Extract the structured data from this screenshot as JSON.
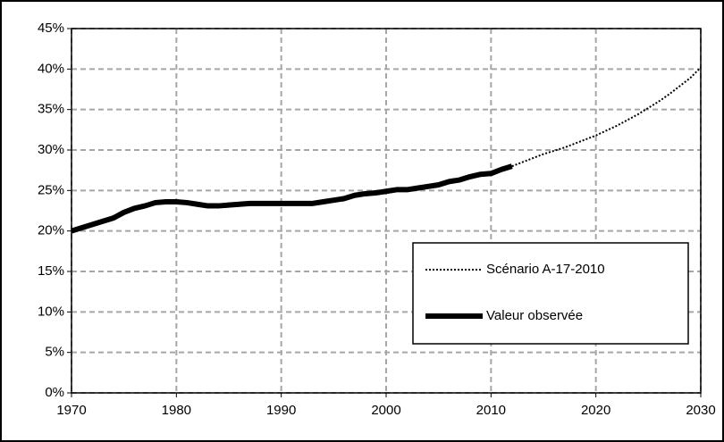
{
  "chart_data": {
    "type": "line",
    "x": [
      1970,
      1971,
      1972,
      1973,
      1974,
      1975,
      1976,
      1977,
      1978,
      1979,
      1980,
      1981,
      1982,
      1983,
      1984,
      1985,
      1986,
      1987,
      1988,
      1989,
      1990,
      1991,
      1992,
      1993,
      1994,
      1995,
      1996,
      1997,
      1998,
      1999,
      2000,
      2001,
      2002,
      2003,
      2004,
      2005,
      2006,
      2007,
      2008,
      2009,
      2010,
      2011,
      2012,
      2013,
      2014,
      2015,
      2016,
      2017,
      2018,
      2019,
      2020,
      2021,
      2022,
      2023,
      2024,
      2025,
      2026,
      2027,
      2028,
      2029,
      2030
    ],
    "series": [
      {
        "name": "Scénario A-17-2010",
        "color": "#000000",
        "line_style": "dotted",
        "values": [
          null,
          null,
          null,
          null,
          null,
          null,
          null,
          null,
          null,
          null,
          null,
          null,
          null,
          null,
          null,
          null,
          null,
          null,
          null,
          null,
          null,
          null,
          null,
          null,
          null,
          null,
          null,
          null,
          null,
          null,
          null,
          null,
          null,
          null,
          null,
          null,
          null,
          null,
          null,
          null,
          null,
          null,
          28.0,
          28.5,
          29.0,
          29.5,
          29.9,
          30.3,
          30.8,
          31.3,
          31.8,
          32.4,
          33.0,
          33.7,
          34.4,
          35.2,
          36.0,
          36.9,
          37.9,
          38.9,
          40.2
        ]
      },
      {
        "name": "Valeur observée",
        "color": "#000000",
        "line_style": "solid",
        "values": [
          20,
          20.4,
          20.8,
          21.2,
          21.6,
          22.3,
          22.8,
          23.1,
          23.5,
          23.6,
          23.6,
          23.5,
          23.3,
          23.1,
          23.1,
          23.2,
          23.3,
          23.4,
          23.4,
          23.4,
          23.4,
          23.4,
          23.4,
          23.4,
          23.6,
          23.8,
          24.0,
          24.4,
          24.6,
          24.7,
          24.9,
          25.1,
          25.1,
          25.3,
          25.5,
          25.7,
          26.1,
          26.3,
          26.7,
          27.0,
          27.1,
          27.6,
          28.0,
          null,
          null,
          null,
          null,
          null,
          null,
          null,
          null,
          null,
          null,
          null,
          null,
          null,
          null,
          null,
          null,
          null,
          null
        ]
      }
    ],
    "xlim": [
      1970,
      2030
    ],
    "xticks": [
      1970,
      1980,
      1990,
      2000,
      2010,
      2020,
      2030
    ],
    "ylim": [
      0,
      45
    ],
    "yticks": [
      {
        "value": 0,
        "label": "0%"
      },
      {
        "value": 5,
        "label": "5%"
      },
      {
        "value": 10,
        "label": "10%"
      },
      {
        "value": 15,
        "label": "15%"
      },
      {
        "value": 20,
        "label": "20%"
      },
      {
        "value": 25,
        "label": "25%"
      },
      {
        "value": 30,
        "label": "30%"
      },
      {
        "value": 35,
        "label": "35%"
      },
      {
        "value": 40,
        "label": "40%"
      },
      {
        "value": 45,
        "label": "45%"
      }
    ],
    "grid": true,
    "legend": "lower right"
  }
}
